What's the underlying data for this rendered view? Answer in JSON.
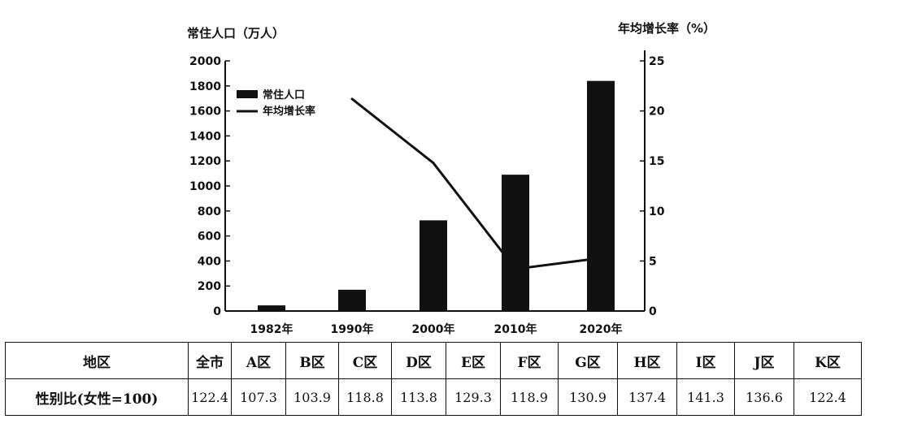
{
  "chart_data": {
    "type": "bar",
    "categories": [
      "1982年",
      "1990年",
      "2000年",
      "2010年",
      "2020年"
    ],
    "series": [
      {
        "name": "常住人口",
        "type": "bar",
        "axis": "left",
        "values": [
          45,
          170,
          725,
          1090,
          1840
        ]
      },
      {
        "name": "年均增长率",
        "type": "line",
        "axis": "right",
        "values": [
          null,
          21.2,
          14.8,
          4.2,
          5.3
        ]
      }
    ],
    "ylabel": "常住人口（万人）",
    "ylabel_right": "年均增长率（%）",
    "ylim": [
      0,
      2000
    ],
    "ylim_right": [
      0,
      25
    ],
    "yticks": [
      "0",
      "200",
      "400",
      "600",
      "800",
      "1000",
      "1200",
      "1400",
      "1600",
      "1800",
      "2000"
    ],
    "yticks_right": [
      "0",
      "5",
      "10",
      "15",
      "20",
      "25"
    ],
    "legend_position": "top-left",
    "grid": false,
    "colors": {
      "bar": "#111111",
      "line": "#111111"
    }
  },
  "table": {
    "header_label": "地区",
    "row_label": "性别比(女性=100)",
    "regions": [
      "全市",
      "A区",
      "B区",
      "C区",
      "D区",
      "E区",
      "F区",
      "G区",
      "H区",
      "I区",
      "J区",
      "K区"
    ],
    "values": [
      "122.4",
      "107.3",
      "103.9",
      "118.8",
      "113.8",
      "129.3",
      "118.9",
      "130.9",
      "137.4",
      "141.3",
      "136.6",
      "122.4"
    ]
  }
}
